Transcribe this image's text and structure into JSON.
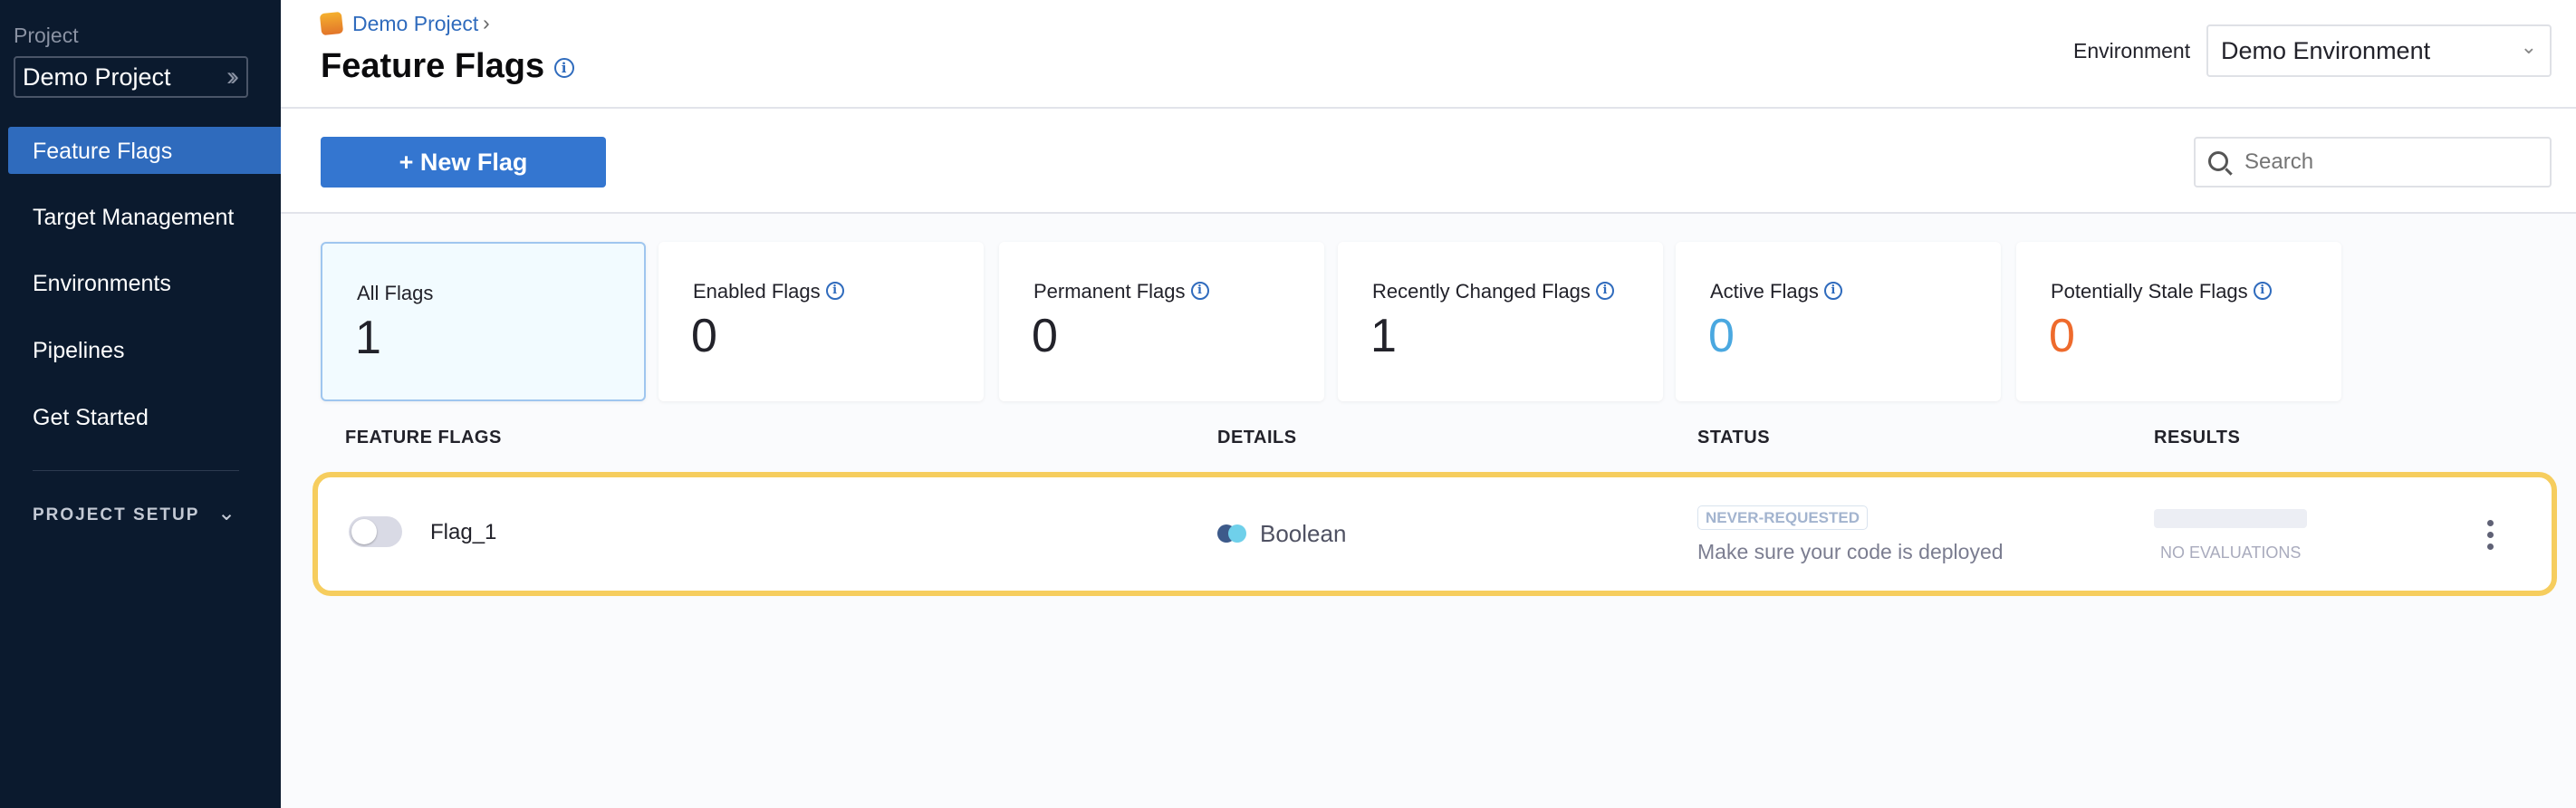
{
  "sidebar": {
    "project_label": "Project",
    "project_name": "Demo Project",
    "nav": [
      {
        "label": "Feature Flags",
        "active": true
      },
      {
        "label": "Target Management"
      },
      {
        "label": "Environments"
      },
      {
        "label": "Pipelines"
      },
      {
        "label": "Get Started"
      }
    ],
    "project_setup": "PROJECT SETUP"
  },
  "header": {
    "breadcrumb": "Demo Project",
    "title": "Feature Flags",
    "environment_label": "Environment",
    "environment_value": "Demo Environment"
  },
  "toolbar": {
    "new_flag": "+ New Flag",
    "search_placeholder": "Search"
  },
  "cards": [
    {
      "label": "All Flags",
      "value": "1",
      "selected": true,
      "color": "#22222a"
    },
    {
      "label": "Enabled Flags",
      "value": "0",
      "info": true,
      "color": "#22222a"
    },
    {
      "label": "Permanent Flags",
      "value": "0",
      "info": true,
      "color": "#22222a"
    },
    {
      "label": "Recently Changed Flags",
      "value": "1",
      "info": true,
      "color": "#22222a"
    },
    {
      "label": "Active Flags",
      "value": "0",
      "info": true,
      "color": "#4aa8e0"
    },
    {
      "label": "Potentially Stale Flags",
      "value": "0",
      "info": true,
      "color": "#ee6a2c"
    }
  ],
  "table": {
    "columns": [
      "FEATURE FLAGS",
      "DETAILS",
      "STATUS",
      "RESULTS"
    ],
    "rows": [
      {
        "name": "Flag_1",
        "enabled": false,
        "type": "Boolean",
        "status": "NEVER-REQUESTED",
        "status_desc": "Make sure your code is deployed",
        "results": "NO EVALUATIONS"
      }
    ]
  },
  "colors": {
    "accent": "#3476d0",
    "sidebar": "#0b1a2e",
    "highlight": "#f6cd5e"
  }
}
